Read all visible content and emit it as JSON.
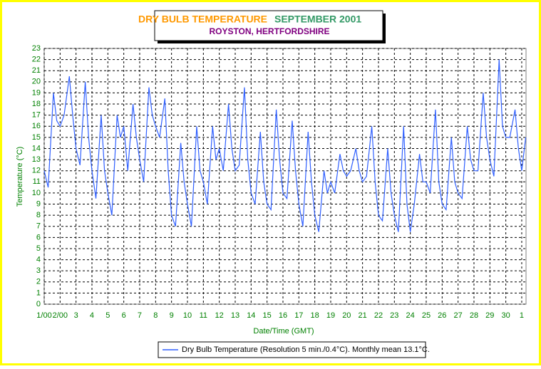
{
  "chart_data": {
    "type": "line",
    "title": "DRY BULB TEMPERATURE",
    "title_right": "SEPTEMBER 2001",
    "subtitle": "ROYSTON, HERTFORDSHIRE",
    "x_label": "Date/Time (GMT)",
    "y_label": "Temperature (°C)",
    "legend_position": "bottom",
    "grid": true,
    "xlim": [
      0,
      30.27
    ],
    "ylim": [
      0,
      23
    ],
    "xticks": [
      {
        "value": 0,
        "label": "1/00"
      },
      {
        "value": 1,
        "label": "2/00"
      },
      {
        "value": 2,
        "label": "3"
      },
      {
        "value": 3,
        "label": "4"
      },
      {
        "value": 4,
        "label": "5"
      },
      {
        "value": 5,
        "label": "6"
      },
      {
        "value": 6,
        "label": "7"
      },
      {
        "value": 7,
        "label": "8"
      },
      {
        "value": 8,
        "label": "9"
      },
      {
        "value": 9,
        "label": "10"
      },
      {
        "value": 10,
        "label": "11"
      },
      {
        "value": 11,
        "label": "12"
      },
      {
        "value": 12,
        "label": "13"
      },
      {
        "value": 13,
        "label": "14"
      },
      {
        "value": 14,
        "label": "15"
      },
      {
        "value": 15,
        "label": "16"
      },
      {
        "value": 16,
        "label": "17"
      },
      {
        "value": 17,
        "label": "18"
      },
      {
        "value": 18,
        "label": "19"
      },
      {
        "value": 19,
        "label": "20"
      },
      {
        "value": 20,
        "label": "21"
      },
      {
        "value": 21,
        "label": "22"
      },
      {
        "value": 22,
        "label": "23"
      },
      {
        "value": 23,
        "label": "24"
      },
      {
        "value": 24,
        "label": "25"
      },
      {
        "value": 25,
        "label": "26"
      },
      {
        "value": 26,
        "label": "27"
      },
      {
        "value": 27,
        "label": "28"
      },
      {
        "value": 28,
        "label": "29"
      },
      {
        "value": 29,
        "label": "30"
      },
      {
        "value": 30,
        "label": "1"
      }
    ],
    "yticks": [
      0,
      1,
      2,
      3,
      4,
      5,
      6,
      7,
      8,
      9,
      10,
      11,
      12,
      13,
      14,
      15,
      16,
      17,
      18,
      19,
      20,
      21,
      22,
      23
    ],
    "x": [
      0,
      0.25,
      0.58,
      0.79,
      1,
      1.25,
      1.58,
      1.79,
      2,
      2.25,
      2.58,
      2.79,
      3,
      3.25,
      3.58,
      3.79,
      4,
      4.25,
      4.58,
      4.79,
      5,
      5.25,
      5.58,
      5.79,
      6,
      6.25,
      6.58,
      6.79,
      7,
      7.25,
      7.58,
      7.79,
      8,
      8.25,
      8.58,
      8.79,
      9,
      9.25,
      9.58,
      9.79,
      10,
      10.25,
      10.58,
      10.79,
      11,
      11.25,
      11.58,
      11.79,
      12,
      12.25,
      12.58,
      12.79,
      13,
      13.25,
      13.58,
      13.79,
      14,
      14.25,
      14.58,
      14.79,
      15,
      15.25,
      15.58,
      15.79,
      16,
      16.25,
      16.58,
      16.79,
      17,
      17.25,
      17.58,
      17.79,
      18,
      18.25,
      18.58,
      18.79,
      19,
      19.25,
      19.58,
      19.79,
      20,
      20.25,
      20.58,
      20.79,
      21,
      21.25,
      21.58,
      21.79,
      22,
      22.25,
      22.58,
      22.79,
      23,
      23.25,
      23.58,
      23.79,
      24,
      24.25,
      24.58,
      24.79,
      25,
      25.25,
      25.58,
      25.79,
      26,
      26.25,
      26.58,
      26.79,
      27,
      27.25,
      27.58,
      27.79,
      28,
      28.25,
      28.58,
      28.79,
      29,
      29.25,
      29.58,
      29.79,
      30,
      30.25
    ],
    "series": [
      {
        "name": "Dry Bulb Temperature (Resolution 5 min./0.4°C). Monthly mean 13.1°C.",
        "color": "#3060ff",
        "values": [
          12,
          10.5,
          19,
          16.5,
          16,
          17,
          20.5,
          17,
          14,
          12.5,
          20,
          15,
          12,
          9.5,
          17,
          12,
          10,
          8,
          17,
          15,
          16,
          12,
          18,
          15,
          13,
          11,
          19.5,
          17,
          16,
          15,
          18.5,
          12,
          8,
          7,
          14.5,
          11,
          9,
          7,
          16,
          12,
          11,
          9,
          16,
          13,
          14,
          12,
          18,
          14,
          12,
          12.5,
          19.5,
          13,
          10,
          9,
          15.5,
          11,
          9,
          8.5,
          17.5,
          13,
          10,
          9.5,
          16.5,
          12,
          9,
          7,
          15.5,
          11,
          8,
          6.5,
          12,
          10,
          11,
          10,
          13.5,
          12,
          11.5,
          12,
          14,
          12,
          11,
          11.5,
          16,
          11,
          8,
          7.5,
          14,
          10,
          8,
          6.5,
          16,
          9,
          6.5,
          9,
          13.5,
          11,
          11,
          10,
          17.5,
          11,
          9,
          8.5,
          15,
          11,
          10,
          9.5,
          16,
          13,
          12,
          12,
          19,
          15,
          13,
          11.5,
          22,
          16,
          15,
          15,
          17.5,
          14,
          12,
          15
        ]
      }
    ]
  }
}
